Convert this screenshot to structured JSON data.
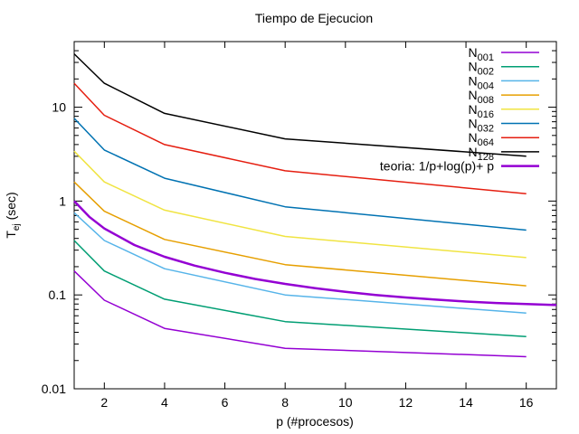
{
  "chart_data": {
    "type": "line",
    "title": "Tiempo de Ejecucion",
    "xlabel": "p (#procesos)",
    "ylabel": {
      "main": "T",
      "sub": "ej",
      "rest": " (sec)"
    },
    "xlim": [
      1,
      17
    ],
    "ylim": [
      0.01,
      50
    ],
    "yscale": "log",
    "grid": false,
    "legend_position": "top-right",
    "xticks": [
      2,
      4,
      6,
      8,
      10,
      12,
      14,
      16
    ],
    "yticks": [
      {
        "value": 0.01,
        "label": "0.01"
      },
      {
        "value": 0.1,
        "label": "0.1"
      },
      {
        "value": 1,
        "label": "1"
      },
      {
        "value": 10,
        "label": "10"
      }
    ],
    "series": [
      {
        "name": "N",
        "sub": "001",
        "color": "#9400d3",
        "x": [
          1,
          2,
          4,
          8,
          16
        ],
        "y": [
          0.18,
          0.088,
          0.044,
          0.027,
          0.022
        ]
      },
      {
        "name": "N",
        "sub": "002",
        "color": "#009e73",
        "x": [
          1,
          2,
          4,
          8,
          16
        ],
        "y": [
          0.38,
          0.18,
          0.09,
          0.052,
          0.036
        ]
      },
      {
        "name": "N",
        "sub": "004",
        "color": "#56b4e9",
        "x": [
          1,
          2,
          4,
          8,
          16
        ],
        "y": [
          0.75,
          0.38,
          0.19,
          0.1,
          0.064
        ]
      },
      {
        "name": "N",
        "sub": "008",
        "color": "#e69f00",
        "x": [
          1,
          2,
          4,
          8,
          16
        ],
        "y": [
          1.6,
          0.78,
          0.39,
          0.21,
          0.125
        ]
      },
      {
        "name": "N",
        "sub": "016",
        "color": "#f0e442",
        "x": [
          1,
          2,
          4,
          8,
          16
        ],
        "y": [
          3.4,
          1.6,
          0.8,
          0.42,
          0.25
        ]
      },
      {
        "name": "N",
        "sub": "032",
        "color": "#0072b2",
        "x": [
          1,
          2,
          4,
          8,
          16
        ],
        "y": [
          7.6,
          3.5,
          1.75,
          0.87,
          0.49
        ]
      },
      {
        "name": "N",
        "sub": "064",
        "color": "#e51e10",
        "x": [
          1,
          2,
          4,
          8,
          16
        ],
        "y": [
          18,
          8.2,
          4.0,
          2.1,
          1.2
        ]
      },
      {
        "name": "N",
        "sub": "128",
        "color": "#000000",
        "x": [
          1,
          2,
          4,
          8,
          16
        ],
        "y": [
          37,
          18,
          8.6,
          4.6,
          3.0
        ]
      },
      {
        "name": "teoria: 1/p+log(p)+ p",
        "sub": "",
        "color": "#9400d3",
        "width": 2.5,
        "x": [
          1,
          1.5,
          2,
          3,
          4,
          5,
          6,
          7,
          8,
          9,
          10,
          11,
          12,
          13,
          14,
          15,
          16,
          17
        ],
        "y": [
          1.0,
          0.68,
          0.51,
          0.34,
          0.255,
          0.205,
          0.172,
          0.148,
          0.131,
          0.118,
          0.108,
          0.1,
          0.094,
          0.089,
          0.085,
          0.082,
          0.08,
          0.078
        ]
      }
    ]
  }
}
